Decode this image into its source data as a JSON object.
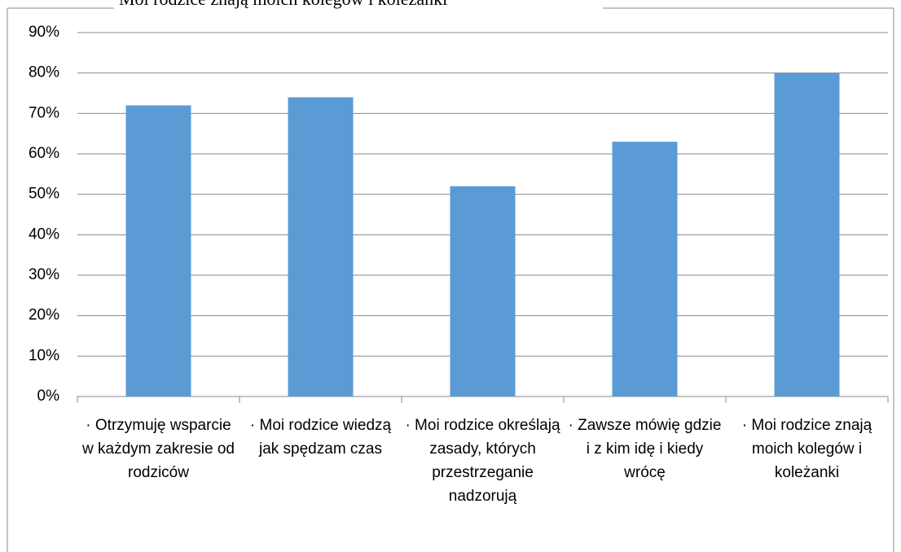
{
  "chart_data": {
    "type": "bar",
    "title": "Moi rodzice znają moich kolegów i koleżanki",
    "categories": [
      "·   Otrzymuję wsparcie w każdym zakresie od rodziców",
      "·   Moi rodzice wiedzą jak spędzam czas",
      "·   Moi rodzice określają zasady, których przestrzeganie nadzorują",
      "·   Zawsze mówię gdzie i z kim idę i kiedy wrócę",
      "·   Moi rodzice znają moich kolegów i koleżanki"
    ],
    "values": [
      72,
      74,
      52,
      63,
      80
    ],
    "color": "#5b9bd5",
    "ylim": [
      0,
      90
    ],
    "yticks": [
      {
        "value": 0,
        "label": "0%"
      },
      {
        "value": 10,
        "label": "10%"
      },
      {
        "value": 20,
        "label": "20%"
      },
      {
        "value": 30,
        "label": "30%"
      },
      {
        "value": 40,
        "label": "40%"
      },
      {
        "value": 50,
        "label": "50%"
      },
      {
        "value": 60,
        "label": "60%"
      },
      {
        "value": 70,
        "label": "70%"
      },
      {
        "value": 80,
        "label": "80%"
      },
      {
        "value": 90,
        "label": "90%"
      }
    ],
    "grid": true
  }
}
